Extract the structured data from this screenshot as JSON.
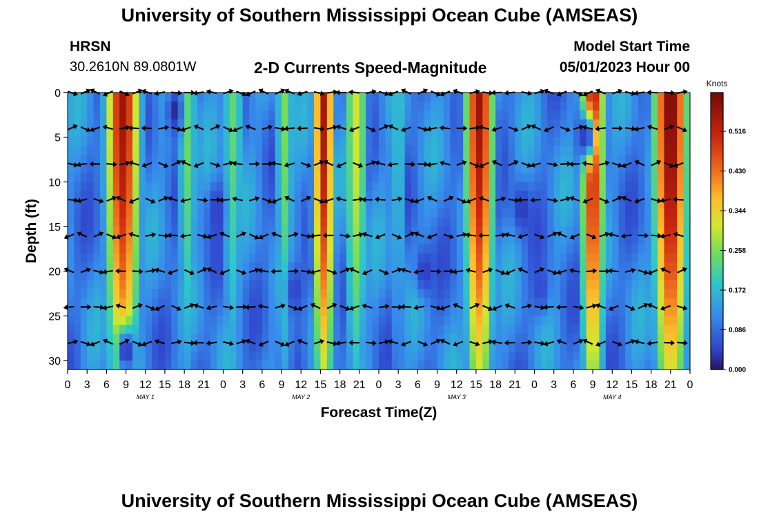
{
  "page": {
    "title": "University of Southern Mississippi Ocean Cube (AMSEAS)",
    "footer_title": "University of Southern Mississippi Ocean Cube (AMSEAS)",
    "station": "HRSN",
    "coords": "30.2610N  89.0801W",
    "chart_title": "2-D Currents Speed-Magnitude",
    "model_label": "Model Start Time",
    "model_time": "05/01/2023 Hour 00"
  },
  "chart_data": {
    "type": "heatmap",
    "title": "2-D Currents Speed-Magnitude",
    "xlabel": "Forecast Time(Z)",
    "ylabel": "Depth (ft)",
    "x_range_hours": [
      0,
      96
    ],
    "y_range_ft": [
      0,
      31
    ],
    "x_tick_labels": [
      "0",
      "3",
      "6",
      "9",
      "12",
      "15",
      "18",
      "21",
      "0",
      "3",
      "6",
      "9",
      "12",
      "15",
      "18",
      "21",
      "0",
      "3",
      "6",
      "9",
      "12",
      "15",
      "18",
      "21",
      "0",
      "3",
      "6",
      "9",
      "12",
      "15",
      "18",
      "21",
      "0"
    ],
    "y_ticks": [
      0,
      5,
      10,
      15,
      20,
      25,
      30
    ],
    "day_labels": [
      {
        "text": "MAY 1",
        "hour": 12
      },
      {
        "text": "MAY 2",
        "hour": 36
      },
      {
        "text": "MAY 3",
        "hour": 60
      },
      {
        "text": "MAY 4",
        "hour": 84
      }
    ],
    "colorbar": {
      "title": "Knots",
      "min": 0.0,
      "max": 0.6,
      "tick_values": [
        0.0,
        0.086,
        0.172,
        0.258,
        0.344,
        0.43,
        0.516
      ],
      "tick_labels": [
        "0.000",
        "0.086",
        "0.172",
        "0.258",
        "0.344",
        "0.430",
        "0.516"
      ]
    },
    "arrow_depths_ft": [
      0,
      4,
      8,
      12,
      16,
      20,
      24,
      28
    ],
    "speed_events": [
      {
        "hour": 8.5,
        "speed": 0.56,
        "width_h": 2.6
      },
      {
        "hour": 18.5,
        "speed": 0.25,
        "width_h": 1.6
      },
      {
        "hour": 25.5,
        "speed": 0.24,
        "width_h": 1.8
      },
      {
        "hour": 33.5,
        "speed": 0.26,
        "width_h": 1.5
      },
      {
        "hour": 39.5,
        "speed": 0.55,
        "width_h": 1.6
      },
      {
        "hour": 44.5,
        "speed": 0.32,
        "width_h": 1.8
      },
      {
        "hour": 51,
        "speed": 0.22,
        "width_h": 1.0
      },
      {
        "hour": 63.5,
        "speed": 0.56,
        "width_h": 2.2
      },
      {
        "hour": 81,
        "speed": 0.55,
        "width_h": 1.8
      },
      {
        "hour": 93,
        "speed": 0.6,
        "width_h": 2.6
      }
    ],
    "low_spots": [
      {
        "hour": 16.5,
        "depth": 2,
        "speed": 0.02
      },
      {
        "hour": 23,
        "depth": 13,
        "speed": 0.04
      },
      {
        "hour": 35,
        "depth": 22,
        "speed": 0.04
      },
      {
        "hour": 9,
        "depth": 29,
        "speed": 0.0
      },
      {
        "hour": 55,
        "depth": 20,
        "speed": 0.03
      },
      {
        "hour": 70,
        "depth": 13,
        "speed": 0.03
      },
      {
        "hour": 80,
        "depth": 5,
        "speed": 0.0
      },
      {
        "hour": 73,
        "depth": 22,
        "speed": 0.05
      }
    ]
  }
}
